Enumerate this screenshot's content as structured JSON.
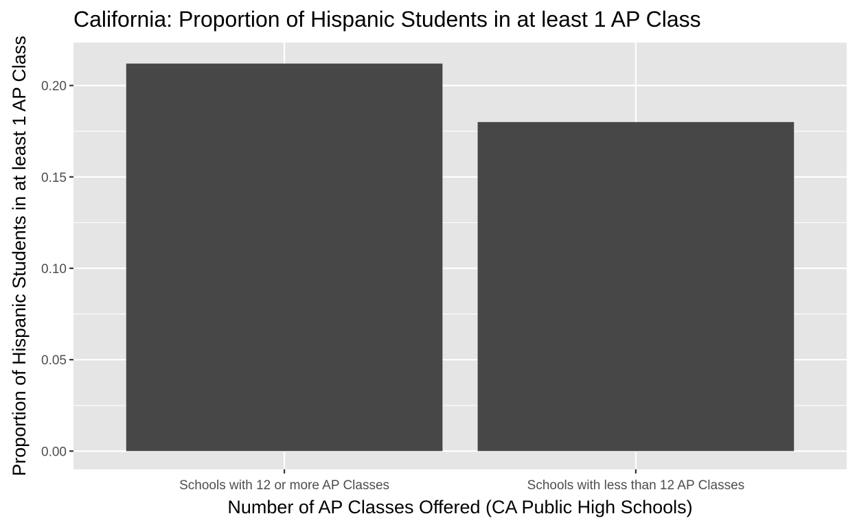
{
  "chart_data": {
    "type": "bar",
    "title": "California: Proportion of Hispanic Students in at least 1 AP Class",
    "xlabel": "Number of AP Classes Offered (CA Public High Schools)",
    "ylabel": "Proportion of Hispanic Students in at least 1 AP Class",
    "categories": [
      "Schools with 12 or more AP Classes",
      "Schools with less than 12 AP Classes"
    ],
    "values": [
      0.212,
      0.18
    ],
    "ylim": [
      -0.01,
      0.2235
    ],
    "yticks": [
      0.0,
      0.05,
      0.1,
      0.15,
      0.2
    ],
    "ytick_labels": [
      "0.00",
      "0.05",
      "0.10",
      "0.15",
      "0.20"
    ],
    "grid": true,
    "colors": {
      "bar": "#474747",
      "panel": "#e5e5e5",
      "grid": "#ffffff",
      "tick_text": "#4d4d4d"
    }
  }
}
